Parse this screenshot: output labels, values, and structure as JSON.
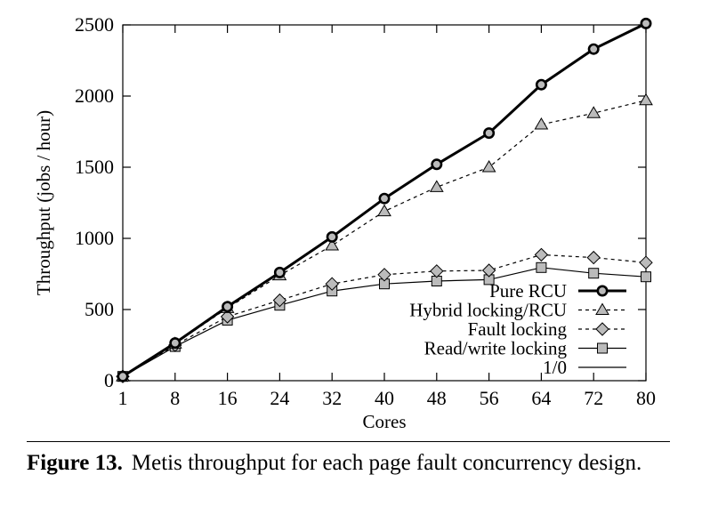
{
  "chart_data": {
    "type": "line",
    "xlabel": "Cores",
    "ylabel": "Throughput (jobs / hour)",
    "x_categories": [
      "1",
      "8",
      "16",
      "24",
      "32",
      "40",
      "48",
      "56",
      "64",
      "72",
      "80"
    ],
    "y_ticks": [
      0,
      500,
      1000,
      1500,
      2000,
      2500
    ],
    "ylim": [
      0,
      2500
    ],
    "grid": false,
    "legend_position": "bottom-right",
    "series": [
      {
        "name": "Pure RCU",
        "marker": "circle",
        "line": "solid-thick",
        "color": "#000000",
        "values": [
          30,
          265,
          520,
          760,
          1010,
          1280,
          1520,
          1740,
          2080,
          2330,
          2510
        ]
      },
      {
        "name": "Hybrid locking/RCU",
        "marker": "triangle",
        "line": "dashed",
        "color": "#000000",
        "values": [
          30,
          260,
          510,
          740,
          950,
          1190,
          1360,
          1500,
          1800,
          1880,
          1970
        ]
      },
      {
        "name": "Fault locking",
        "marker": "diamond",
        "line": "dashed",
        "color": "#000000",
        "values": [
          30,
          250,
          450,
          565,
          680,
          745,
          770,
          775,
          885,
          865,
          830
        ]
      },
      {
        "name": "Read/write locking",
        "marker": "square",
        "line": "solid-thin",
        "color": "#000000",
        "values": [
          30,
          240,
          425,
          530,
          630,
          680,
          700,
          710,
          795,
          755,
          730
        ]
      },
      {
        "name": "1/0",
        "marker": "none",
        "line": "solid-thin",
        "color": "#000000",
        "values": []
      }
    ],
    "marker_fill": "#bbbbbb"
  },
  "caption": {
    "label": "Figure 13.",
    "text": "Metis throughput for each page fault concurrency design."
  }
}
